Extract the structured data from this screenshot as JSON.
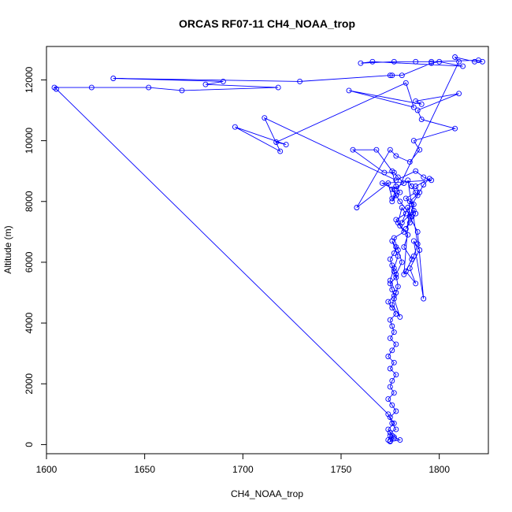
{
  "chart_data": {
    "type": "line",
    "title": "ORCAS RF07-11 CH4_NOAA_trop",
    "xlabel": "CH4_NOAA_trop",
    "ylabel": "Altitude (m)",
    "xlim": [
      1600,
      1825
    ],
    "ylim": [
      -300,
      13100
    ],
    "x_ticks": [
      1600,
      1650,
      1700,
      1750,
      1800
    ],
    "y_ticks": [
      0,
      2000,
      4000,
      6000,
      8000,
      10000,
      12000
    ],
    "x_tick_labels": [
      "1600",
      "1650",
      "1700",
      "1750",
      "1800"
    ],
    "y_tick_labels": [
      "0",
      "2000",
      "4000",
      "6000",
      "8000",
      "10000",
      "12000"
    ],
    "grid": false,
    "marker": "open-circle",
    "color": "#0000ff",
    "series": [
      {
        "x": [
          1775,
          1776,
          1774,
          1777,
          1775,
          1778,
          1776,
          1774,
          1777,
          1775,
          1776,
          1778,
          1775,
          1777,
          1774,
          1776,
          1778,
          1775,
          1777,
          1776,
          1775,
          1778,
          1776,
          1774,
          1777,
          1776,
          1775,
          1778,
          1777,
          1776,
          1775,
          1777,
          1778,
          1776,
          1779,
          1777,
          1775,
          1778,
          1776,
          1780,
          1777,
          1779,
          1778,
          1781,
          1779,
          1777,
          1782,
          1780,
          1778,
          1783,
          1781,
          1779,
          1784,
          1782,
          1786,
          1783,
          1788,
          1785,
          1790,
          1787,
          1792,
          1789,
          1785,
          1787,
          1783,
          1788,
          1786,
          1784,
          1789,
          1787,
          1782,
          1785,
          1790,
          1788,
          1795,
          1792,
          1789,
          1786,
          1788,
          1785,
          1783,
          1787,
          1781,
          1784,
          1786,
          1780,
          1778,
          1776,
          1782,
          1779,
          1777,
          1772,
          1756,
          1768,
          1776,
          1778,
          1780,
          1776,
          1774,
          1758,
          1775,
          1778,
          1785,
          1790,
          1787,
          1808,
          1791,
          1789,
          1810,
          1788,
          1791,
          1754,
          1787,
          1783,
          1717,
          1722,
          1696,
          1719,
          1711,
          1778,
          1788,
          1792,
          1796,
          1771,
          1777,
          1778,
          1776,
          1810,
          1808,
          1818,
          1822,
          1820,
          1796,
          1788,
          1777,
          1760,
          1766,
          1812,
          1800,
          1796,
          1781,
          1776,
          1775,
          1729,
          1634,
          1690,
          1681,
          1718,
          1669,
          1652,
          1623,
          1604,
          1605,
          1774,
          1776,
          1778,
          1775,
          1777,
          1780,
          1775,
          1777,
          1775,
          1774
        ],
        "y": [
          120,
          300,
          500,
          700,
          900,
          1100,
          1300,
          1500,
          1700,
          1900,
          2100,
          2300,
          2500,
          2700,
          2900,
          3100,
          3300,
          3500,
          3700,
          3900,
          4100,
          4300,
          4500,
          4700,
          4900,
          5100,
          5300,
          5500,
          5700,
          5900,
          6100,
          6300,
          6500,
          6700,
          6200,
          5800,
          5400,
          5000,
          4600,
          4200,
          4800,
          5200,
          5600,
          6000,
          6400,
          6800,
          7000,
          7200,
          7400,
          7600,
          7800,
          7300,
          6900,
          6500,
          6100,
          5700,
          5300,
          5800,
          6400,
          6700,
          4800,
          7000,
          7500,
          7900,
          8100,
          8300,
          8500,
          8700,
          6600,
          6200,
          5600,
          8000,
          8300,
          8500,
          8750,
          8550,
          8200,
          7900,
          7600,
          7300,
          7100,
          7700,
          7300,
          7800,
          7500,
          8000,
          8200,
          8400,
          8600,
          8800,
          8950,
          8950,
          9700,
          9700,
          9000,
          8500,
          8300,
          8100,
          8600,
          7800,
          9700,
          9500,
          9300,
          9700,
          10000,
          10400,
          10700,
          11000,
          11550,
          11300,
          11200,
          11650,
          11100,
          11900,
          9950,
          9870,
          10450,
          9650,
          10750,
          8700,
          9000,
          8800,
          8700,
          8600,
          8400,
          8200,
          8000,
          12600,
          12750,
          12600,
          12600,
          12650,
          12600,
          12600,
          12600,
          12550,
          12600,
          12450,
          12600,
          12550,
          12150,
          12150,
          12150,
          11950,
          12050,
          11950,
          11850,
          11750,
          11650,
          11750,
          11750,
          11750,
          11700,
          1000,
          700,
          500,
          400,
          250,
          150,
          100,
          200,
          300,
          150
        ]
      }
    ]
  }
}
